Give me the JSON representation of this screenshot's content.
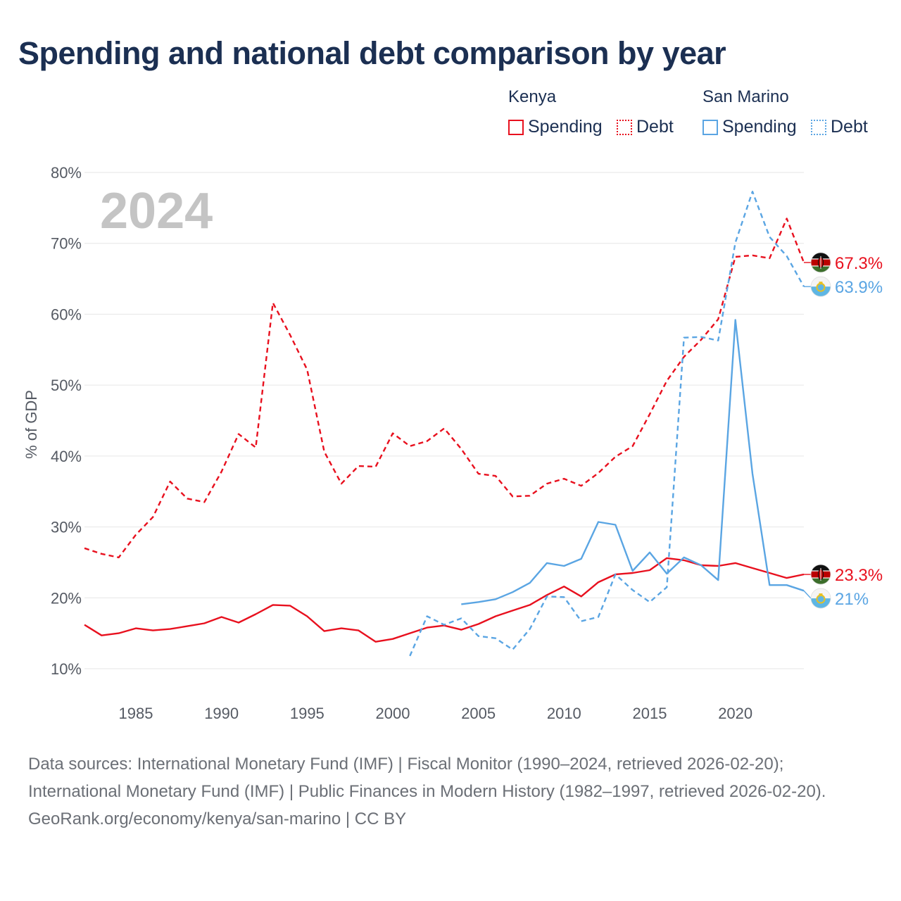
{
  "title": "Spending and national debt comparison by year",
  "legend": {
    "kenya": {
      "title": "Kenya",
      "spending": "Spending",
      "debt": "Debt"
    },
    "san_marino": {
      "title": "San Marino",
      "spending": "Spending",
      "debt": "Debt"
    }
  },
  "year_stamp": "2024",
  "footer": {
    "sources": "Data sources: International Monetary Fund (IMF) | Fiscal Monitor (1990–2024, retrieved 2026-02-20); International Monetary Fund (IMF) | Public Finances in Modern History (1982–1997, retrieved 2026-02-20).",
    "credit": "GeoRank.org/economy/kenya/san-marino | CC BY"
  },
  "colors": {
    "kenya": "#e8101e",
    "san_marino": "#5aa5e3"
  },
  "chart_data": {
    "type": "line",
    "title": "Spending and national debt comparison by year",
    "xlabel": "",
    "ylabel": "% of GDP",
    "xlim": [
      1982,
      2024
    ],
    "ylim": [
      10,
      80
    ],
    "x_ticks": [
      1985,
      1990,
      1995,
      2000,
      2005,
      2010,
      2015,
      2020
    ],
    "y_ticks": [
      10,
      20,
      30,
      40,
      50,
      60,
      70,
      80
    ],
    "y_tick_labels": [
      "10%",
      "20%",
      "30%",
      "40%",
      "50%",
      "60%",
      "70%",
      "80%"
    ],
    "grid": true,
    "series": [
      {
        "name": "Kenya Spending",
        "country": "Kenya",
        "metric": "Spending",
        "style": "solid",
        "color": "#e8101e",
        "end_label": "23.3%",
        "points": [
          [
            1982,
            16.2
          ],
          [
            1983,
            14.7
          ],
          [
            1984,
            15.0
          ],
          [
            1985,
            15.7
          ],
          [
            1986,
            15.4
          ],
          [
            1987,
            15.6
          ],
          [
            1988,
            16.0
          ],
          [
            1989,
            16.4
          ],
          [
            1990,
            17.3
          ],
          [
            1991,
            16.5
          ],
          [
            1992,
            17.7
          ],
          [
            1993,
            19.0
          ],
          [
            1994,
            18.9
          ],
          [
            1995,
            17.4
          ],
          [
            1996,
            15.3
          ],
          [
            1997,
            15.7
          ],
          [
            1998,
            15.4
          ],
          [
            1999,
            13.8
          ],
          [
            2000,
            14.2
          ],
          [
            2001,
            15.0
          ],
          [
            2002,
            15.8
          ],
          [
            2003,
            16.1
          ],
          [
            2004,
            15.5
          ],
          [
            2005,
            16.3
          ],
          [
            2006,
            17.4
          ],
          [
            2007,
            18.2
          ],
          [
            2008,
            19.0
          ],
          [
            2009,
            20.4
          ],
          [
            2010,
            21.6
          ],
          [
            2011,
            20.2
          ],
          [
            2012,
            22.2
          ],
          [
            2013,
            23.3
          ],
          [
            2014,
            23.5
          ],
          [
            2015,
            23.9
          ],
          [
            2016,
            25.6
          ],
          [
            2017,
            25.3
          ],
          [
            2018,
            24.6
          ],
          [
            2019,
            24.5
          ],
          [
            2020,
            24.9
          ],
          [
            2021,
            24.2
          ],
          [
            2022,
            23.5
          ],
          [
            2023,
            22.8
          ],
          [
            2024,
            23.3
          ]
        ]
      },
      {
        "name": "Kenya Debt",
        "country": "Kenya",
        "metric": "Debt",
        "style": "dashed",
        "color": "#e8101e",
        "end_label": "67.3%",
        "points": [
          [
            1982,
            27.0
          ],
          [
            1983,
            26.2
          ],
          [
            1984,
            25.7
          ],
          [
            1985,
            28.9
          ],
          [
            1986,
            31.4
          ],
          [
            1987,
            36.4
          ],
          [
            1988,
            34.0
          ],
          [
            1989,
            33.5
          ],
          [
            1990,
            37.8
          ],
          [
            1991,
            43.1
          ],
          [
            1992,
            41.2
          ],
          [
            1993,
            61.6
          ],
          [
            1994,
            57.1
          ],
          [
            1995,
            52.2
          ],
          [
            1996,
            40.6
          ],
          [
            1997,
            36.1
          ],
          [
            1998,
            38.6
          ],
          [
            1999,
            38.5
          ],
          [
            2000,
            43.2
          ],
          [
            2001,
            41.4
          ],
          [
            2002,
            42.1
          ],
          [
            2003,
            43.9
          ],
          [
            2004,
            41.0
          ],
          [
            2005,
            37.5
          ],
          [
            2006,
            37.2
          ],
          [
            2007,
            34.3
          ],
          [
            2008,
            34.4
          ],
          [
            2009,
            36.1
          ],
          [
            2010,
            36.8
          ],
          [
            2011,
            35.8
          ],
          [
            2012,
            37.6
          ],
          [
            2013,
            39.9
          ],
          [
            2014,
            41.4
          ],
          [
            2015,
            45.9
          ],
          [
            2016,
            50.6
          ],
          [
            2017,
            54.0
          ],
          [
            2018,
            56.4
          ],
          [
            2019,
            59.3
          ],
          [
            2020,
            68.1
          ],
          [
            2021,
            68.3
          ],
          [
            2022,
            67.9
          ],
          [
            2023,
            73.5
          ],
          [
            2024,
            67.3
          ]
        ]
      },
      {
        "name": "San Marino Spending",
        "country": "San Marino",
        "metric": "Spending",
        "style": "solid",
        "color": "#5aa5e3",
        "end_label": "21%",
        "points": [
          [
            2004,
            19.1
          ],
          [
            2005,
            19.4
          ],
          [
            2006,
            19.8
          ],
          [
            2007,
            20.8
          ],
          [
            2008,
            22.1
          ],
          [
            2009,
            24.9
          ],
          [
            2010,
            24.5
          ],
          [
            2011,
            25.5
          ],
          [
            2012,
            30.7
          ],
          [
            2013,
            30.3
          ],
          [
            2014,
            23.8
          ],
          [
            2015,
            26.4
          ],
          [
            2016,
            23.4
          ],
          [
            2017,
            25.7
          ],
          [
            2018,
            24.6
          ],
          [
            2019,
            22.5
          ],
          [
            2020,
            59.2
          ],
          [
            2021,
            37.5
          ],
          [
            2022,
            21.8
          ],
          [
            2023,
            21.8
          ],
          [
            2024,
            21.0
          ]
        ]
      },
      {
        "name": "San Marino Debt",
        "country": "San Marino",
        "metric": "Debt",
        "style": "dashed",
        "color": "#5aa5e3",
        "end_label": "63.9%",
        "points": [
          [
            2001,
            11.8
          ],
          [
            2002,
            17.4
          ],
          [
            2003,
            16.2
          ],
          [
            2004,
            17.1
          ],
          [
            2005,
            14.6
          ],
          [
            2006,
            14.3
          ],
          [
            2007,
            12.7
          ],
          [
            2008,
            15.6
          ],
          [
            2009,
            20.2
          ],
          [
            2010,
            20.1
          ],
          [
            2011,
            16.7
          ],
          [
            2012,
            17.3
          ],
          [
            2013,
            23.3
          ],
          [
            2014,
            21.1
          ],
          [
            2015,
            19.4
          ],
          [
            2016,
            21.5
          ],
          [
            2017,
            56.7
          ],
          [
            2018,
            56.8
          ],
          [
            2019,
            56.3
          ],
          [
            2020,
            70.1
          ],
          [
            2021,
            77.3
          ],
          [
            2022,
            70.9
          ],
          [
            2023,
            68.2
          ],
          [
            2024,
            63.9
          ]
        ]
      }
    ]
  }
}
